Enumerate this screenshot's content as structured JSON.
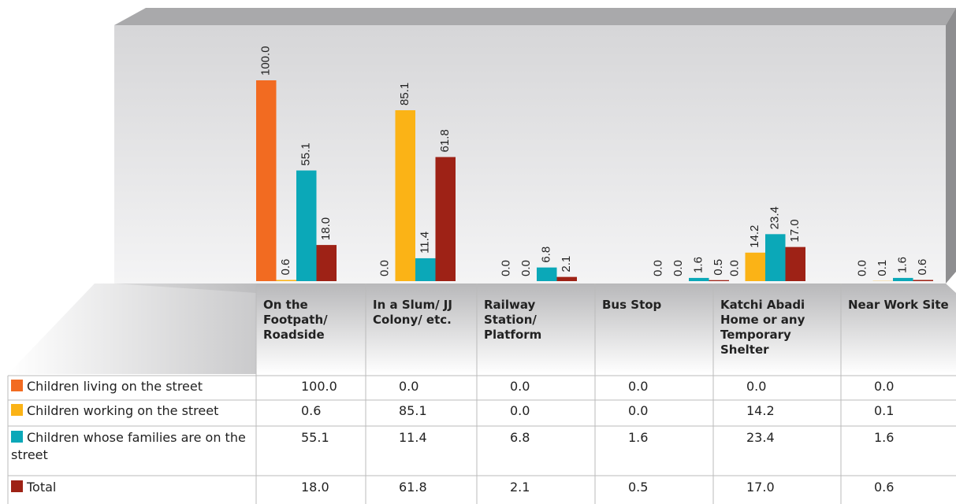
{
  "chart_data": {
    "type": "bar",
    "categories": [
      "On the Footpath/ Roadside",
      "In a Slum/ JJ Colony/ etc.",
      "Railway Station/ Platform",
      "Bus Stop",
      "Katchi Abadi Home or any Temporary Shelter",
      "Near Work Site"
    ],
    "series": [
      {
        "name": "Children living on the street",
        "color": "#f26b21",
        "values": [
          100,
          0,
          0,
          0,
          0,
          0
        ],
        "value_labels": [
          "100.0",
          "0.0",
          "0.0",
          "0.0",
          "0.0",
          "0.0"
        ]
      },
      {
        "name": "Children working on the street",
        "color": "#fbb316",
        "values": [
          0.6,
          85.1,
          0,
          0,
          14.2,
          0.1
        ],
        "value_labels": [
          "0.6",
          "85.1",
          "0.0",
          "0.0",
          "14.2",
          "0.1"
        ]
      },
      {
        "name": "Children whose families are on the street",
        "color": "#0ba8b8",
        "values": [
          55.1,
          11.4,
          6.8,
          1.6,
          23.4,
          1.6
        ],
        "value_labels": [
          "55.1",
          "11.4",
          "6.8",
          "1.6",
          "23.4",
          "1.6"
        ]
      },
      {
        "name": "Total",
        "color": "#9e2216",
        "values": [
          18,
          61.8,
          2.1,
          0.5,
          17,
          0.6
        ],
        "value_labels": [
          "18.0",
          "61.8",
          "2.1",
          "0.5",
          "17.0",
          "0.6"
        ]
      }
    ]
  }
}
